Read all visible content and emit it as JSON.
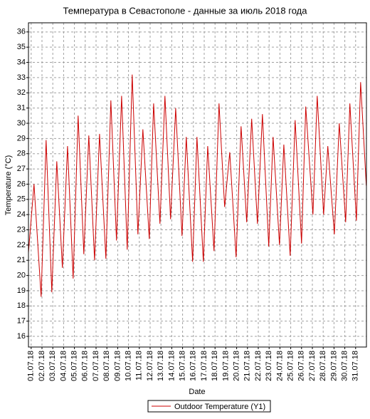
{
  "chart_data": {
    "type": "line",
    "title": "Температура в Севастополе - данные за июль 2018 года",
    "xlabel": "Date",
    "ylabel": "Temperature (°C)",
    "x": [
      0.75,
      1.26,
      1.92,
      2.38,
      2.91,
      3.37,
      3.89,
      4.36,
      4.88,
      5.34,
      5.87,
      6.33,
      6.86,
      7.32,
      7.91,
      8.37,
      8.89,
      9.36,
      9.88,
      10.34,
      10.87,
      11.33,
      11.92,
      12.32,
      12.91,
      13.37,
      13.89,
      14.36,
      14.95,
      15.34,
      15.93,
      16.33,
      16.92,
      17.32,
      17.91,
      18.37,
      18.89,
      19.36,
      19.95,
      20.41,
      20.93,
      21.39,
      21.92,
      22.38,
      22.97,
      23.37,
      23.96,
      24.36,
      24.95,
      25.41,
      26.0,
      26.39,
      27.05,
      27.45,
      28.04,
      28.43,
      29.03,
      29.49,
      30.08,
      30.47,
      31.07,
      31.46,
      31.99
    ],
    "series": [
      {
        "name": "Outdoor Temperature (Y1)",
        "color": "#cc0000",
        "values": [
          21.5,
          26.0,
          18.6,
          28.9,
          18.9,
          27.5,
          20.5,
          28.5,
          19.8,
          30.5,
          21.4,
          29.2,
          21.0,
          29.3,
          21.1,
          31.5,
          22.3,
          31.8,
          21.7,
          33.2,
          22.7,
          29.6,
          22.4,
          31.3,
          23.4,
          31.8,
          23.7,
          31.0,
          22.6,
          29.1,
          20.9,
          29.1,
          20.9,
          28.5,
          21.6,
          31.3,
          24.5,
          28.1,
          21.2,
          29.8,
          23.5,
          30.3,
          23.4,
          30.6,
          21.9,
          29.1,
          22.0,
          28.6,
          21.3,
          30.2,
          22.1,
          31.1,
          24.0,
          31.8,
          24.0,
          28.5,
          22.7,
          30.0,
          23.5,
          31.3,
          23.6,
          32.7,
          25.9
        ]
      }
    ],
    "xlim": [
      0.75,
      32.0
    ],
    "xticks": [
      {
        "value": 1,
        "label": "01.07.18"
      },
      {
        "value": 2,
        "label": "02.07.18"
      },
      {
        "value": 3,
        "label": "03.07.18"
      },
      {
        "value": 4,
        "label": "04.07.18"
      },
      {
        "value": 5,
        "label": "05.07.18"
      },
      {
        "value": 6,
        "label": "06.07.18"
      },
      {
        "value": 7,
        "label": "07.07.18"
      },
      {
        "value": 8,
        "label": "08.07.18"
      },
      {
        "value": 9,
        "label": "09.07.18"
      },
      {
        "value": 10,
        "label": "10.07.18"
      },
      {
        "value": 11,
        "label": "11.07.18"
      },
      {
        "value": 12,
        "label": "12.07.18"
      },
      {
        "value": 13,
        "label": "13.07.18"
      },
      {
        "value": 14,
        "label": "14.07.18"
      },
      {
        "value": 15,
        "label": "15.07.18"
      },
      {
        "value": 16,
        "label": "16.07.18"
      },
      {
        "value": 17,
        "label": "17.07.18"
      },
      {
        "value": 18,
        "label": "18.07.18"
      },
      {
        "value": 19,
        "label": "19.07.18"
      },
      {
        "value": 20,
        "label": "20.07.18"
      },
      {
        "value": 21,
        "label": "21.07.18"
      },
      {
        "value": 22,
        "label": "22.07.18"
      },
      {
        "value": 23,
        "label": "23.07.18"
      },
      {
        "value": 24,
        "label": "24.07.18"
      },
      {
        "value": 25,
        "label": "25.07.18"
      },
      {
        "value": 26,
        "label": "26.07.18"
      },
      {
        "value": 27,
        "label": "27.07.18"
      },
      {
        "value": 28,
        "label": "28.07.18"
      },
      {
        "value": 29,
        "label": "29.07.18"
      },
      {
        "value": 30,
        "label": "30.07.18"
      },
      {
        "value": 31,
        "label": "31.07.18"
      }
    ],
    "ylim": [
      15.3,
      36.6
    ],
    "yticks": [
      16,
      17,
      18,
      19,
      20,
      21,
      22,
      23,
      24,
      25,
      26,
      27,
      28,
      29,
      30,
      31,
      32,
      33,
      34,
      35,
      36
    ],
    "grid": true,
    "legend": "bottom"
  }
}
